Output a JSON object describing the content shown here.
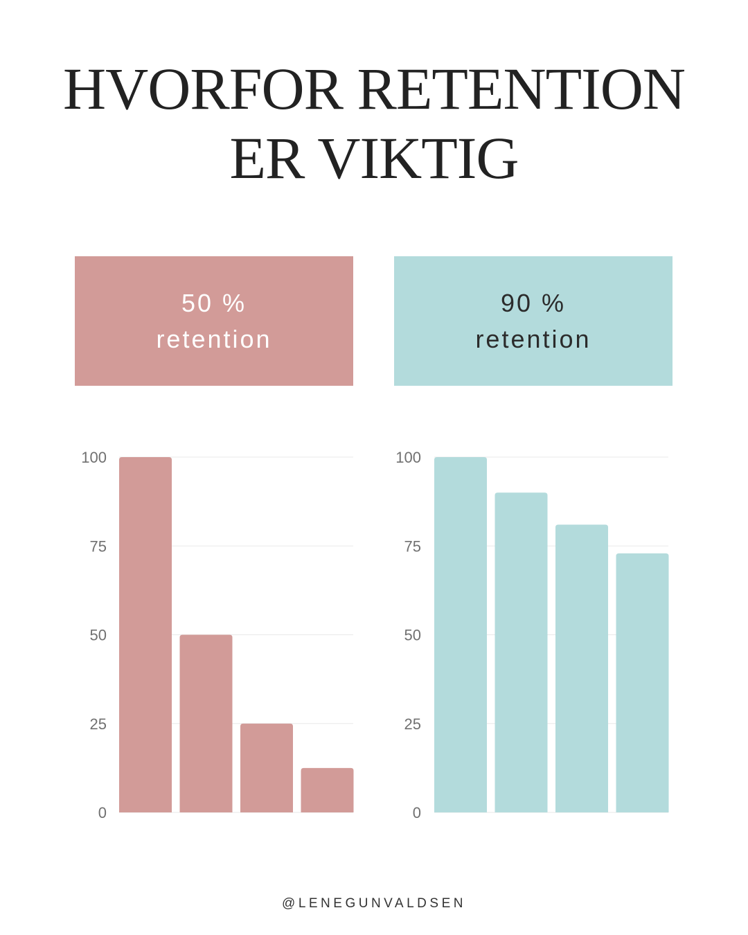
{
  "title": {
    "line1": "HVORFOR RETENTION",
    "line2": "ER VIKTIG"
  },
  "cards": [
    {
      "line1": "50 %",
      "line2": "retention",
      "color": "#d29b98",
      "text_color": "#ffffff"
    },
    {
      "line1": "90 %",
      "line2": "retention",
      "color": "#b3dbdc",
      "text_color": "#2b2b2b"
    }
  ],
  "chart_data": [
    {
      "type": "bar",
      "categories": [
        "",
        "",
        "",
        ""
      ],
      "values": [
        100,
        50,
        25,
        12.5
      ],
      "ylim": [
        0,
        100
      ],
      "yticks": [
        "0",
        "25",
        "50",
        "75",
        "100"
      ],
      "grid": true,
      "color": "#d29b98"
    },
    {
      "type": "bar",
      "categories": [
        "",
        "",
        "",
        ""
      ],
      "values": [
        100,
        90,
        81,
        72.9
      ],
      "ylim": [
        0,
        100
      ],
      "yticks": [
        "0",
        "25",
        "50",
        "75",
        "100"
      ],
      "grid": true,
      "color": "#b3dbdc"
    }
  ],
  "footer": {
    "handle": "@LENEGUNVALDSEN"
  }
}
